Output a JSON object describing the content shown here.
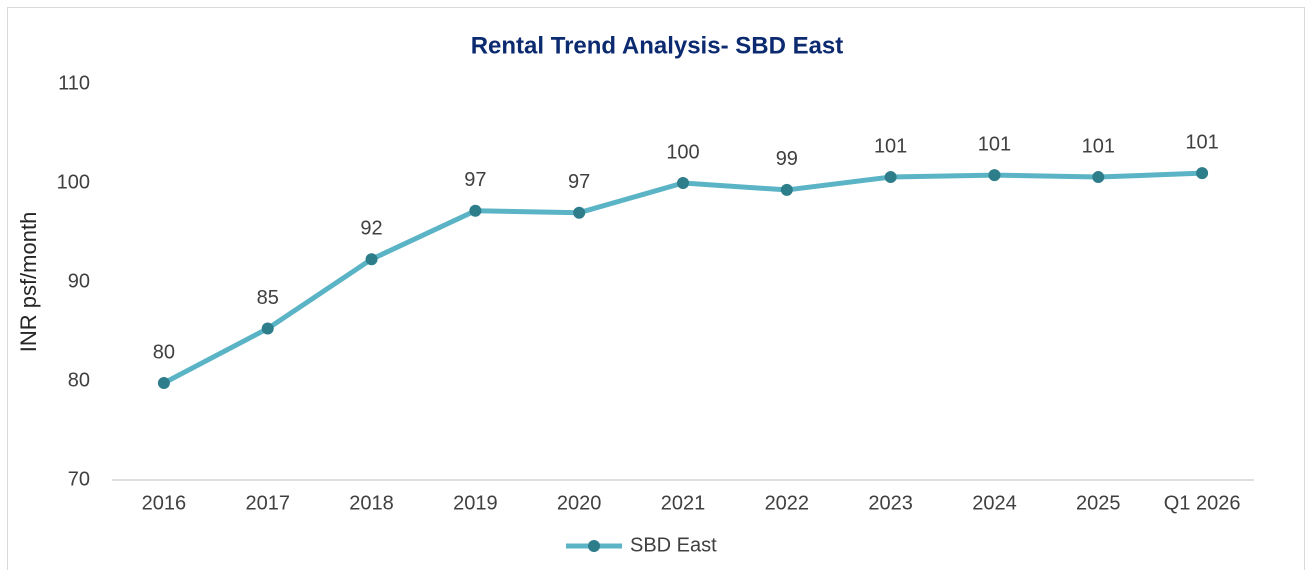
{
  "chart_data": {
    "type": "line",
    "title": "Rental Trend Analysis- SBD East",
    "y_label": "INR psf/month",
    "categories": [
      "2016",
      "2017",
      "2018",
      "2019",
      "2020",
      "2021",
      "2022",
      "2023",
      "2024",
      "2025",
      "Q1 2026"
    ],
    "series": [
      {
        "name": "SBD East",
        "color": "#5ab4c5",
        "marker_color": "#2e7d8a",
        "values": [
          79.8,
          85.3,
          92.3,
          97.2,
          97.0,
          100.0,
          99.3,
          100.6,
          100.8,
          100.6,
          101.0
        ],
        "value_labels": [
          "80",
          "85",
          "92",
          "97",
          "97",
          "100",
          "99",
          "101",
          "101",
          "101",
          "101"
        ]
      }
    ],
    "ylim": [
      70,
      110
    ],
    "yticks": [
      70,
      80,
      90,
      100,
      110
    ],
    "grid": false,
    "legend": "bottom"
  }
}
